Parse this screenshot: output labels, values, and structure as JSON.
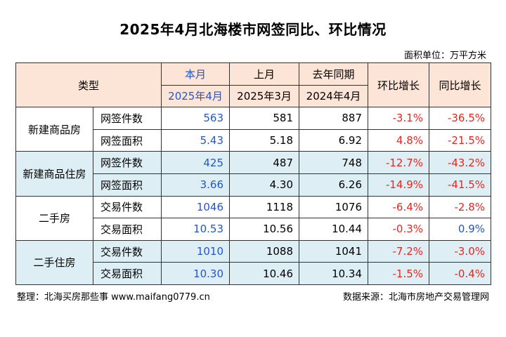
{
  "title": "2025年4月北海楼市网签同比、环比情况",
  "unit": "面积单位：万平方米",
  "header": {
    "type": "类型",
    "current": "本月",
    "current_date": "2025年4月",
    "last": "上月",
    "last_date": "2025年3月",
    "yoy_base": "去年同期",
    "yoy_base_date": "2024年4月",
    "mom": "环比增长",
    "yoy": "同比增长"
  },
  "rows": [
    {
      "group": "新建商品房",
      "metric": "网签件数",
      "current": "563",
      "last": "581",
      "year_ago": "887",
      "mom": "-3.1%",
      "yoy": "-36.5%"
    },
    {
      "group": "新建商品房",
      "metric": "网签面积",
      "current": "5.43",
      "last": "5.18",
      "year_ago": "6.92",
      "mom": "4.8%",
      "yoy": "-21.5%"
    },
    {
      "group": "新建商品住房",
      "metric": "网签件数",
      "current": "425",
      "last": "487",
      "year_ago": "748",
      "mom": "-12.7%",
      "yoy": "-43.2%"
    },
    {
      "group": "新建商品住房",
      "metric": "网签面积",
      "current": "3.66",
      "last": "4.30",
      "year_ago": "6.26",
      "mom": "-14.9%",
      "yoy": "-41.5%"
    },
    {
      "group": "二手房",
      "metric": "交易件数",
      "current": "1046",
      "last": "1118",
      "year_ago": "1076",
      "mom": "-6.4%",
      "yoy": "-2.8%"
    },
    {
      "group": "二手房",
      "metric": "交易面积",
      "current": "10.53",
      "last": "10.56",
      "year_ago": "10.44",
      "mom": "-0.3%",
      "yoy": "0.9%"
    },
    {
      "group": "二手住房",
      "metric": "交易件数",
      "current": "1010",
      "last": "1088",
      "year_ago": "1041",
      "mom": "-7.2%",
      "yoy": "-3.0%"
    },
    {
      "group": "二手住房",
      "metric": "交易面积",
      "current": "10.30",
      "last": "10.46",
      "year_ago": "10.34",
      "mom": "-1.5%",
      "yoy": "-0.4%"
    }
  ],
  "footer": {
    "left": "整理：北海买房那些事 www.maifang0779.cn",
    "right": "数据来源：北海市房地产交易管理网"
  },
  "colors": {
    "header_bg": "#fce4d6",
    "band_bg": "#ddeef5",
    "current_text": "#2456c8",
    "negative": "#e8261f",
    "positive_yoy": "#2456c8"
  }
}
